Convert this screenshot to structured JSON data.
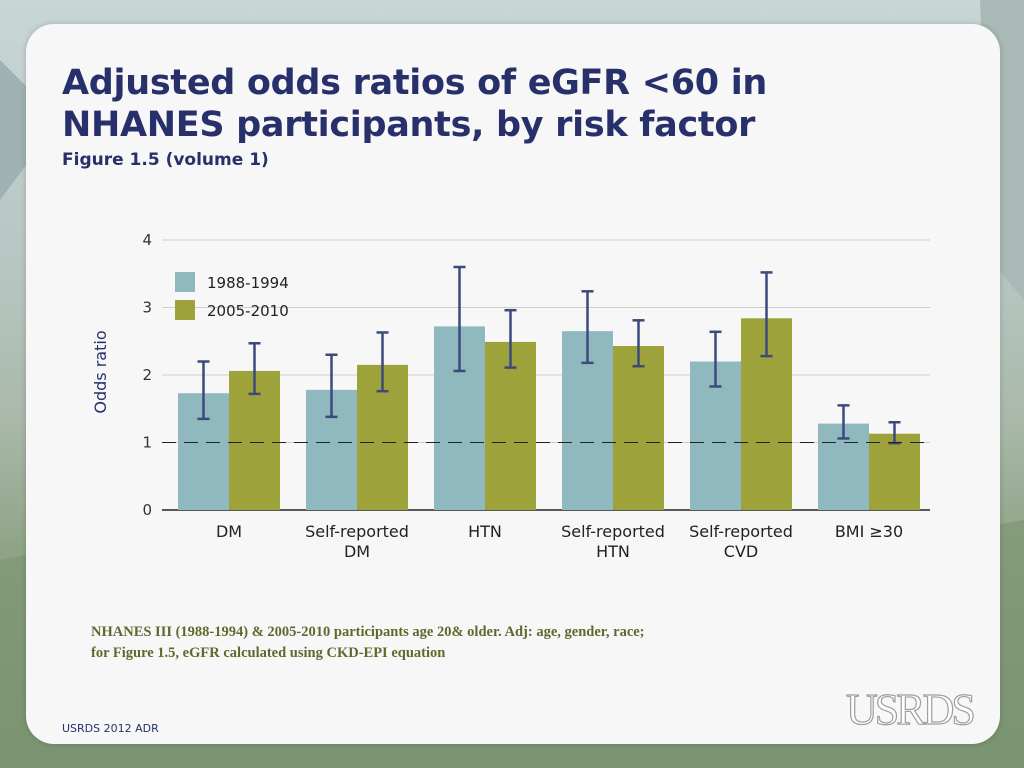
{
  "slide": {
    "title": "Adjusted odds ratios of eGFR <60 in NHANES participants, by risk factor",
    "subtitle": "Figure 1.5 (volume 1)",
    "footnote_line1": "NHANES III (1988-1994) & 2005-2010 participants age 20& older. Adj: age, gender, race;",
    "footnote_line2": "for Figure 1.5, eGFR calculated using CKD-EPI equation",
    "footer": "USRDS 2012 ADR",
    "logo": "USRDS"
  },
  "colors": {
    "series1": "#8fb9be",
    "series2": "#9ea23a",
    "error": "#3b4a7a",
    "title": "#27306b"
  },
  "chart_data": {
    "type": "bar",
    "title": "",
    "ylabel": "Odds ratio",
    "xlabel": "",
    "ylim": [
      0,
      4
    ],
    "yticks": [
      0,
      1,
      2,
      3,
      4
    ],
    "reference_line": 1,
    "legend_position": "top-left",
    "categories": [
      [
        "DM"
      ],
      [
        "Self-reported",
        "DM"
      ],
      [
        "HTN"
      ],
      [
        "Self-reported",
        "HTN"
      ],
      [
        "Self-reported",
        "CVD"
      ],
      [
        "BMI ≥30"
      ]
    ],
    "series": [
      {
        "name": "1988-1994",
        "values": [
          1.73,
          1.78,
          2.72,
          2.65,
          2.2,
          1.28
        ],
        "ci_low": [
          1.35,
          1.38,
          2.06,
          2.18,
          1.83,
          1.06
        ],
        "ci_high": [
          2.2,
          2.3,
          3.6,
          3.24,
          2.64,
          1.55
        ]
      },
      {
        "name": "2005-2010",
        "values": [
          2.06,
          2.15,
          2.49,
          2.43,
          2.84,
          1.13
        ],
        "ci_low": [
          1.72,
          1.76,
          2.11,
          2.13,
          2.28,
          0.99
        ],
        "ci_high": [
          2.47,
          2.63,
          2.96,
          2.81,
          3.52,
          1.3
        ]
      }
    ]
  }
}
